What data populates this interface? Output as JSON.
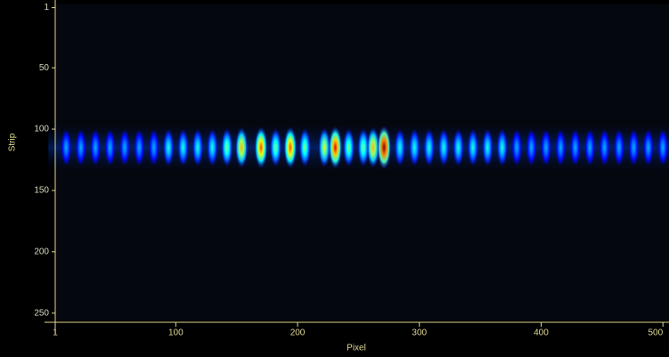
{
  "chart_data": {
    "type": "heatmap",
    "x_label": "Pixel",
    "y_label": "Strip",
    "xlim": [
      1,
      505
    ],
    "ylim": [
      1,
      256
    ],
    "y_inverted": true,
    "xticks": [
      1,
      100,
      200,
      300,
      400,
      500
    ],
    "yticks": [
      1,
      50,
      100,
      150,
      200,
      250
    ],
    "band_center": 115,
    "band_halfwidth": 15,
    "x": [
      10,
      22,
      34,
      46,
      58,
      70,
      82,
      94,
      106,
      118,
      130,
      142,
      154,
      170,
      182,
      194,
      206,
      222,
      231,
      242,
      254,
      262,
      271,
      284,
      296,
      308,
      320,
      332,
      344,
      356,
      368,
      380,
      392,
      404,
      416,
      428,
      440,
      452,
      464,
      476,
      488,
      500
    ],
    "values": [
      3,
      3,
      3,
      3,
      3,
      3,
      3,
      4,
      4,
      4,
      4,
      5,
      7,
      8,
      5,
      8,
      5,
      6,
      9,
      5,
      5,
      7,
      10,
      4,
      4,
      4,
      4,
      4,
      4,
      4,
      4,
      3,
      3,
      3,
      3,
      3,
      3,
      3,
      3,
      3,
      3,
      3
    ],
    "vlim": [
      0,
      10
    ],
    "background": "#05070f",
    "axis_color": "#e0d890"
  }
}
